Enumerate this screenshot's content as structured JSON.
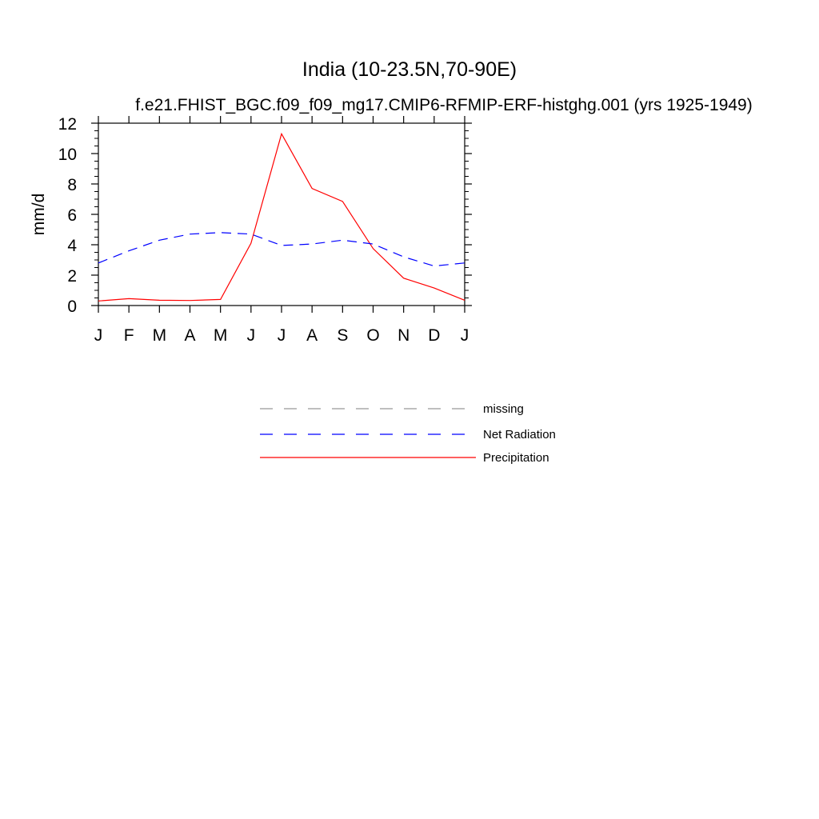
{
  "chart_data": {
    "type": "line",
    "title": "India (10-23.5N,70-90E)",
    "subtitle": "f.e21.FHIST_BGC.f09_f09_mg17.CMIP6-RFMIP-ERF-histghg.001 (yrs 1925-1949)",
    "xlabel": "",
    "ylabel": "mm/d",
    "x_tick_labels": [
      "J",
      "F",
      "M",
      "A",
      "M",
      "J",
      "J",
      "A",
      "S",
      "O",
      "N",
      "D",
      "J"
    ],
    "y_ticks": [
      "0",
      "2",
      "4",
      "6",
      "8",
      "10",
      "12"
    ],
    "ylim": [
      0,
      12
    ],
    "grid": false,
    "legend_position": "bottom-center",
    "series": [
      {
        "name": "Precipitation",
        "color": "#ff0000",
        "dash": "solid",
        "values": [
          0.3,
          0.45,
          0.35,
          0.33,
          0.4,
          4.1,
          11.3,
          7.7,
          6.85,
          3.75,
          1.8,
          1.15,
          0.35
        ]
      },
      {
        "name": "Net Radiation",
        "color": "#0000ff",
        "dash": "dashed",
        "values": [
          2.8,
          3.6,
          4.3,
          4.7,
          4.8,
          4.7,
          3.95,
          4.05,
          4.3,
          4.05,
          3.2,
          2.6,
          2.8
        ]
      }
    ],
    "legend": [
      {
        "label": "missing",
        "color": "#999999",
        "dash": "dashed"
      },
      {
        "label": "Net Radiation",
        "color": "#0000ff",
        "dash": "dashed"
      },
      {
        "label": "Precipitation",
        "color": "#ff0000",
        "dash": "solid"
      }
    ]
  }
}
